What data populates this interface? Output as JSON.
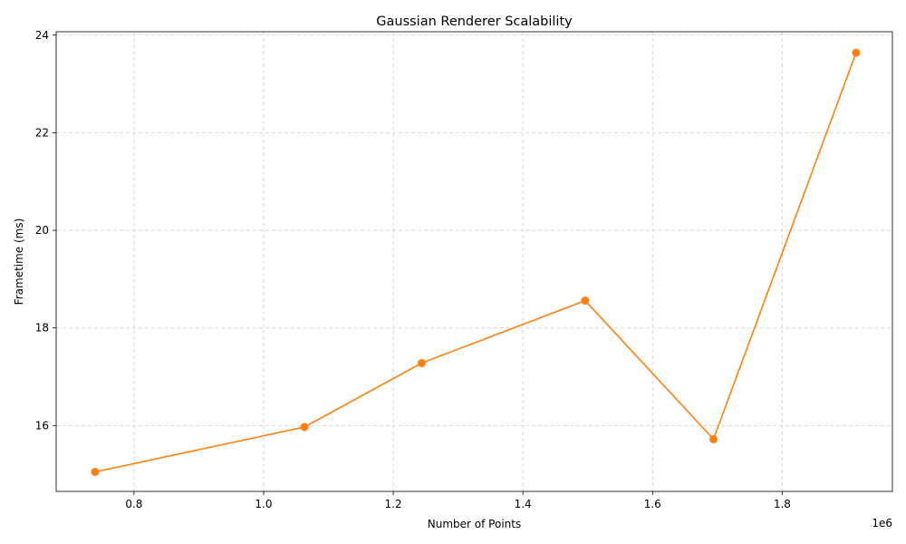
{
  "chart_data": {
    "type": "line",
    "title": "Gaussian Renderer Scalability",
    "xlabel": "Number of Points",
    "ylabel": "Frametime (ms)",
    "x_offset_label": "1e6",
    "xlim": [
      0.68,
      1.97
    ],
    "ylim": [
      14.65,
      24.07
    ],
    "xticks": [
      0.8,
      1.0,
      1.2,
      1.4,
      1.6,
      1.8
    ],
    "xtick_labels": [
      "0.8",
      "1.0",
      "1.2",
      "1.4",
      "1.6",
      "1.8"
    ],
    "yticks": [
      16,
      18,
      20,
      22,
      24
    ],
    "ytick_labels": [
      "16",
      "18",
      "20",
      "22",
      "24"
    ],
    "grid": true,
    "series": [
      {
        "color": "#ff7f0e",
        "x": [
          0.74,
          1.063,
          1.244,
          1.496,
          1.694,
          1.914
        ],
        "y": [
          15.05,
          15.97,
          17.28,
          18.56,
          15.72,
          23.64
        ]
      }
    ]
  }
}
